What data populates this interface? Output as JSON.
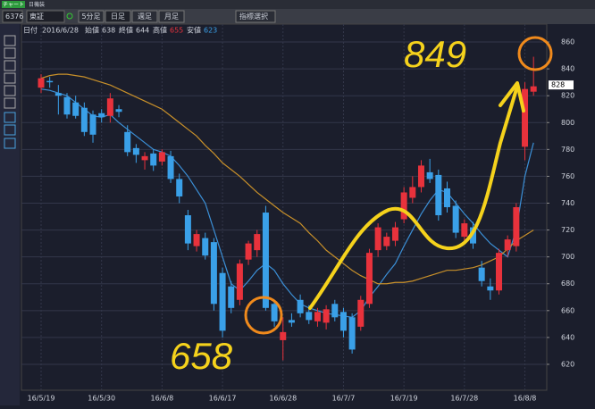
{
  "app": {
    "window_label": "チャート",
    "tab_title": "日機装",
    "code": "6376",
    "market": "東証",
    "buttons": [
      "5分足",
      "日足",
      "週足",
      "月足"
    ],
    "indicator_button": "指標選択"
  },
  "info": {
    "date_label": "日付",
    "date": "2016/6/28",
    "open_label": "始値",
    "open": 638,
    "close_label": "終値",
    "close": 644,
    "high_label": "高値",
    "high": 655,
    "low_label": "安値",
    "low": 623
  },
  "chart_data": {
    "type": "candlestick",
    "categories": [
      "16/5/19",
      null,
      null,
      null,
      null,
      null,
      null,
      "16/5/30",
      null,
      null,
      null,
      null,
      null,
      null,
      "16/6/8",
      null,
      null,
      null,
      null,
      null,
      null,
      "16/6/17",
      null,
      null,
      null,
      null,
      null,
      null,
      "16/6/28",
      null,
      null,
      null,
      null,
      null,
      null,
      "16/7/7",
      null,
      null,
      null,
      null,
      null,
      null,
      "16/7/19",
      null,
      null,
      null,
      null,
      null,
      null,
      "16/7/28",
      null,
      null,
      null,
      null,
      null,
      null,
      "16/8/8",
      null
    ],
    "open": [
      826,
      831,
      822,
      819,
      815,
      811,
      806,
      807,
      805,
      810,
      793,
      781,
      772,
      777,
      771,
      775,
      758,
      731,
      708,
      714,
      711,
      688,
      678,
      668,
      698,
      705,
      733,
      665,
      638,
      653,
      668,
      659,
      652,
      651,
      665,
      659,
      655,
      648,
      665,
      705,
      708,
      712,
      728,
      744,
      752,
      763,
      761,
      751,
      738,
      715,
      722,
      692,
      678,
      675,
      705,
      708,
      782,
      823
    ],
    "high": [
      836,
      834,
      828,
      822,
      820,
      815,
      809,
      810,
      822,
      813,
      798,
      784,
      778,
      780,
      780,
      779,
      762,
      735,
      720,
      718,
      714,
      692,
      682,
      698,
      712,
      720,
      738,
      668,
      655,
      658,
      672,
      664,
      662,
      664,
      668,
      662,
      658,
      671,
      706,
      725,
      718,
      726,
      752,
      760,
      772,
      773,
      765,
      756,
      742,
      728,
      726,
      697,
      684,
      706,
      716,
      740,
      830,
      849
    ],
    "low": [
      822,
      826,
      806,
      803,
      803,
      790,
      785,
      800,
      800,
      804,
      775,
      770,
      765,
      764,
      768,
      755,
      740,
      705,
      704,
      698,
      660,
      640,
      658,
      664,
      694,
      700,
      660,
      648,
      623,
      648,
      655,
      650,
      648,
      646,
      652,
      640,
      628,
      645,
      662,
      700,
      705,
      708,
      725,
      740,
      748,
      755,
      727,
      733,
      714,
      712,
      706,
      678,
      668,
      672,
      700,
      704,
      772,
      820
    ],
    "close": [
      833,
      830,
      820,
      806,
      805,
      793,
      791,
      804,
      818,
      808,
      778,
      776,
      775,
      768,
      778,
      758,
      745,
      710,
      717,
      701,
      665,
      645,
      662,
      695,
      710,
      717,
      662,
      652,
      644,
      651,
      658,
      653,
      659,
      661,
      655,
      645,
      631,
      668,
      703,
      722,
      715,
      722,
      748,
      752,
      768,
      758,
      731,
      737,
      718,
      725,
      710,
      682,
      675,
      703,
      713,
      737,
      825,
      827
    ],
    "up_color": "#e8323c",
    "down_color": "#3aa0e8",
    "series": [
      {
        "color": "#3b8fd6",
        "values": [
          825,
          824,
          822,
          820,
          815,
          810,
          805,
          804,
          806,
          800,
          795,
          790,
          785,
          780,
          778,
          775,
          768,
          760,
          750,
          740,
          720,
          700,
          680,
          675,
          682,
          690,
          695,
          690,
          680,
          672,
          665,
          662,
          660,
          658,
          657,
          656,
          655,
          660,
          670,
          678,
          687,
          695,
          708,
          720,
          732,
          742,
          750,
          748,
          740,
          732,
          725,
          717,
          710,
          705,
          700,
          720,
          760,
          785
        ]
      },
      {
        "color": "#c8902a",
        "values": [
          833,
          835,
          836,
          836,
          835,
          834,
          832,
          830,
          828,
          825,
          822,
          819,
          816,
          813,
          810,
          805,
          800,
          795,
          790,
          783,
          777,
          770,
          765,
          760,
          754,
          748,
          743,
          738,
          733,
          729,
          725,
          718,
          712,
          705,
          700,
          695,
          690,
          686,
          683,
          680,
          680,
          681,
          681,
          682,
          684,
          686,
          688,
          690,
          690,
          691,
          692,
          694,
          697,
          700,
          706,
          712,
          716,
          720
        ]
      }
    ],
    "ylim": [
      613,
      868
    ],
    "yticks": [
      620,
      640,
      660,
      680,
      700,
      720,
      740,
      760,
      780,
      800,
      820,
      840,
      860
    ],
    "grid": true,
    "last_price": 828,
    "annotations": [
      "849",
      "658"
    ]
  }
}
